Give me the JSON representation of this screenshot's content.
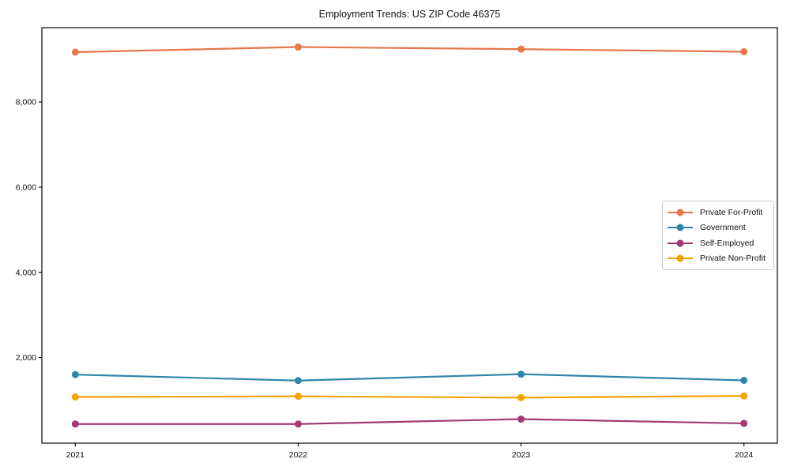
{
  "chart_data": {
    "type": "line",
    "title": "Employment Trends: US ZIP Code 46375",
    "xlabel": "",
    "ylabel": "",
    "x_values": [
      2021,
      2022,
      2023,
      2024
    ],
    "x_tick_labels": [
      "2021",
      "2022",
      "2023",
      "2024"
    ],
    "y_ticks": {
      "values": [
        2000,
        4000,
        6000,
        8000
      ],
      "labels": [
        "2,000",
        "4,000",
        "6,000",
        "8,000"
      ]
    },
    "series": [
      {
        "name": "Private For-Profit",
        "color": "#E8764B",
        "values": [
          9170,
          9290,
          9240,
          9180
        ]
      },
      {
        "name": "Government",
        "color": "#2E86AB",
        "values": [
          1600,
          1460,
          1610,
          1465
        ]
      },
      {
        "name": "Self-Employed",
        "color": "#A23B72",
        "values": [
          440,
          440,
          555,
          455
        ]
      },
      {
        "name": "Private Non-Profit",
        "color": "#F5A201",
        "values": [
          1075,
          1090,
          1060,
          1100
        ]
      }
    ],
    "xlim": [
      2020.85,
      2024.15
    ],
    "ylim": [
      -10,
      9745
    ],
    "grid": false,
    "legend_position": "center-right",
    "plot_border_color": "#000000",
    "background_color": "#ffffff"
  }
}
